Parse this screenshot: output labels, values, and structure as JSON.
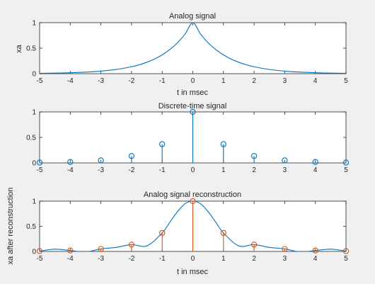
{
  "colors": {
    "background": "#f0f0f0",
    "axes_bg": "#ffffff",
    "axis": "#262626",
    "blue": "#0072bd",
    "orange": "#d95319"
  },
  "chart_data": [
    {
      "type": "line",
      "title": "Analog signal",
      "xlabel": "t in msec",
      "ylabel": "xa",
      "xlim": [
        -5,
        5
      ],
      "ylim": [
        0,
        1
      ],
      "xticks": [
        -5,
        -4,
        -3,
        -2,
        -1,
        0,
        1,
        2,
        3,
        4,
        5
      ],
      "yticks": [
        0,
        0.5,
        1
      ],
      "grid": false,
      "series": [
        {
          "style": "line",
          "color": "#0072bd",
          "x": [
            -5,
            -4.5,
            -4,
            -3.5,
            -3,
            -2.5,
            -2,
            -1.75,
            -1.5,
            -1.25,
            -1,
            -0.75,
            -0.5,
            -0.25,
            0,
            0.25,
            0.5,
            0.75,
            1,
            1.25,
            1.5,
            1.75,
            2,
            2.5,
            3,
            3.5,
            4,
            4.5,
            5
          ],
          "y": [
            0.0067,
            0.0111,
            0.0183,
            0.0302,
            0.0498,
            0.0821,
            0.1353,
            0.1738,
            0.2231,
            0.2865,
            0.3679,
            0.4724,
            0.6065,
            0.7788,
            1,
            0.7788,
            0.6065,
            0.4724,
            0.3679,
            0.2865,
            0.2231,
            0.1738,
            0.1353,
            0.0821,
            0.0498,
            0.0302,
            0.0183,
            0.0111,
            0.0067
          ]
        }
      ]
    },
    {
      "type": "scatter",
      "title": "Discrete-time signal",
      "xlabel": "",
      "ylabel": "",
      "xlim": [
        -5,
        5
      ],
      "ylim": [
        0,
        1
      ],
      "xticks": [
        -5,
        -4,
        -3,
        -2,
        -1,
        0,
        1,
        2,
        3,
        4,
        5
      ],
      "yticks": [
        0,
        0.5,
        1
      ],
      "grid": false,
      "series": [
        {
          "style": "stem",
          "color": "#0072bd",
          "x": [
            -5,
            -4,
            -3,
            -2,
            -1,
            0,
            1,
            2,
            3,
            4,
            5
          ],
          "y": [
            0.0067,
            0.0183,
            0.0498,
            0.1353,
            0.3679,
            1,
            0.3679,
            0.1353,
            0.0498,
            0.0183,
            0.0067
          ]
        }
      ]
    },
    {
      "type": "line",
      "title": "Analog signal reconstruction",
      "xlabel": "t in msec",
      "ylabel": "xa after reconstruction",
      "xlim": [
        -5,
        5
      ],
      "ylim": [
        0,
        1
      ],
      "xticks": [
        -5,
        -4,
        -3,
        -2,
        -1,
        0,
        1,
        2,
        3,
        4,
        5
      ],
      "yticks": [
        0,
        0.5,
        1
      ],
      "grid": false,
      "series": [
        {
          "style": "line",
          "color": "#0072bd",
          "x": [
            -5,
            -4.5,
            -4,
            -3.5,
            -3,
            -2.5,
            -2,
            -1.5,
            -1,
            -0.75,
            -0.5,
            -0.25,
            0,
            0.25,
            0.5,
            0.75,
            1,
            1.5,
            2,
            2.5,
            3,
            3.5,
            4,
            4.5,
            5
          ],
          "y": [
            0.0067,
            0.045,
            0.0183,
            -0.01,
            0.0498,
            0.08,
            0.1353,
            0.11,
            0.3679,
            0.58,
            0.79,
            0.95,
            1,
            0.95,
            0.79,
            0.58,
            0.3679,
            0.11,
            0.1353,
            0.08,
            0.0498,
            -0.01,
            0.0183,
            0.045,
            0.0067
          ]
        },
        {
          "style": "stem",
          "color": "#d95319",
          "x": [
            -5,
            -4,
            -3,
            -2,
            -1,
            0,
            1,
            2,
            3,
            4,
            5
          ],
          "y": [
            0.0067,
            0.0183,
            0.0498,
            0.1353,
            0.3679,
            1,
            0.3679,
            0.1353,
            0.0498,
            0.0183,
            0.0067
          ]
        }
      ]
    }
  ]
}
